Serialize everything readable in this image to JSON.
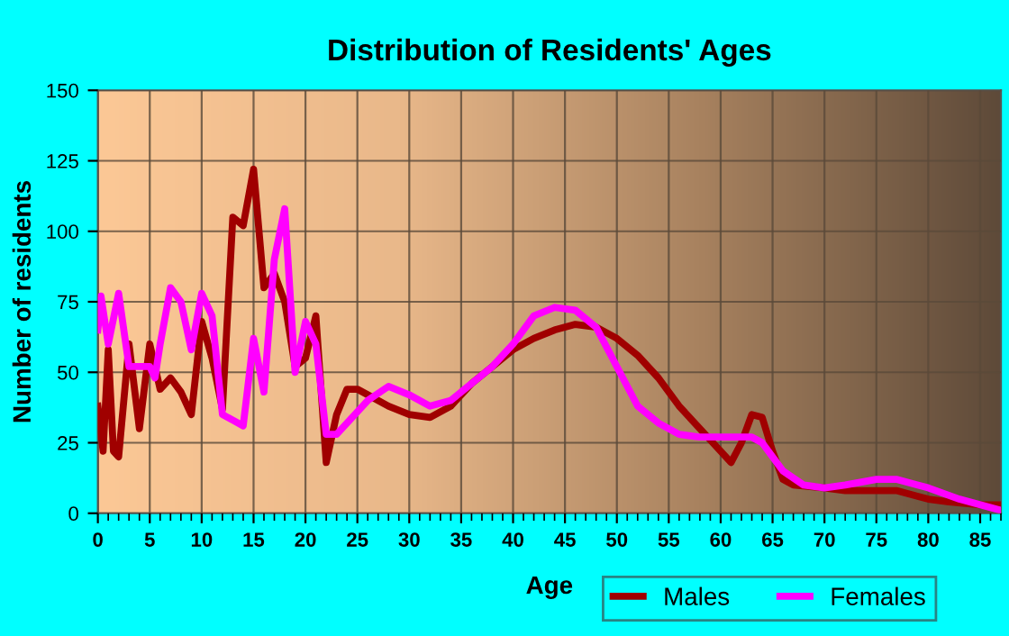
{
  "chart_data": {
    "type": "line",
    "title": "Distribution of Residents' Ages",
    "xlabel": "Age",
    "ylabel": "Number of residents",
    "xlim": [
      0,
      87
    ],
    "xticks": [
      0,
      5,
      10,
      15,
      20,
      25,
      30,
      35,
      40,
      45,
      50,
      55,
      60,
      65,
      70,
      75,
      80,
      85
    ],
    "ylim": [
      0,
      150
    ],
    "yticks": [
      0,
      25,
      50,
      75,
      100,
      125,
      150
    ],
    "grid": true,
    "legend": "bottom right",
    "marker": "none",
    "line_style": "solid",
    "series": [
      {
        "name": "Males",
        "color": "#a00000",
        "x": [
          0,
          0.5,
          1,
          1.5,
          2,
          3,
          4,
          5,
          6,
          7,
          8,
          9,
          10,
          11,
          12,
          13,
          14,
          15,
          16,
          17,
          18,
          19,
          20,
          21,
          22,
          23,
          24,
          25,
          26,
          28,
          30,
          32,
          34,
          36,
          38,
          40,
          42,
          44,
          46,
          48,
          50,
          52,
          54,
          56,
          58,
          60,
          61,
          62,
          63,
          64,
          65,
          66,
          67,
          70,
          72,
          75,
          77,
          80,
          82,
          85,
          87
        ],
        "values": [
          38,
          22,
          58,
          22,
          20,
          60,
          30,
          60,
          44,
          48,
          43,
          35,
          68,
          55,
          37,
          105,
          102,
          122,
          80,
          85,
          75,
          52,
          55,
          70,
          18,
          35,
          44,
          44,
          42,
          38,
          35,
          34,
          38,
          46,
          52,
          58,
          62,
          65,
          67,
          66,
          62,
          56,
          48,
          38,
          30,
          22,
          18,
          25,
          35,
          34,
          22,
          12,
          10,
          9,
          8,
          8,
          8,
          5,
          4,
          3,
          3
        ]
      },
      {
        "name": "Females",
        "color": "#ff00ff",
        "x": [
          0,
          0.3,
          1,
          2,
          3,
          4,
          5,
          5.5,
          6,
          7,
          8,
          9,
          10,
          11,
          12,
          13,
          14,
          15,
          16,
          17,
          18,
          19,
          20,
          21,
          22,
          23,
          24,
          26,
          28,
          30,
          32,
          34,
          36,
          38,
          40,
          42,
          44,
          46,
          48,
          50,
          52,
          54,
          56,
          58,
          60,
          63,
          64,
          66,
          68,
          70,
          72,
          75,
          77,
          80,
          83,
          87
        ],
        "values": [
          65,
          77,
          60,
          78,
          52,
          52,
          52,
          48,
          60,
          80,
          75,
          58,
          78,
          70,
          35,
          33,
          31,
          62,
          43,
          90,
          108,
          50,
          68,
          60,
          28,
          28,
          32,
          40,
          45,
          42,
          38,
          40,
          46,
          52,
          60,
          70,
          73,
          72,
          66,
          52,
          38,
          32,
          28,
          27,
          27,
          27,
          25,
          15,
          10,
          9,
          10,
          12,
          12,
          9,
          5,
          1
        ]
      }
    ]
  }
}
